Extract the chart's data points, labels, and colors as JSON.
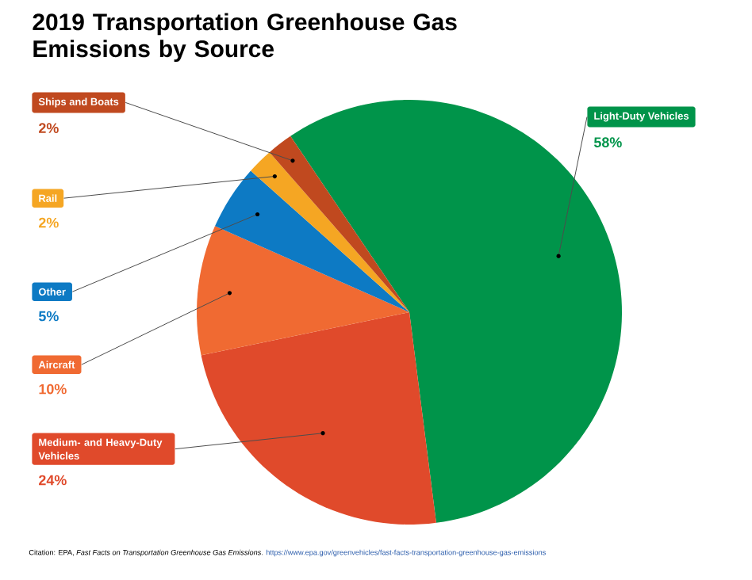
{
  "chart_data": {
    "type": "pie",
    "title": "2019 Transportation Greenhouse Gas Emissions by Source",
    "categories": [
      "Light-Duty Vehicles",
      "Medium- and Heavy-Duty Vehicles",
      "Aircraft",
      "Other",
      "Rail",
      "Ships and Boats"
    ],
    "values": [
      58,
      24,
      10,
      5,
      2,
      2
    ],
    "colors": [
      "#00944a",
      "#e04a2b",
      "#f06a32",
      "#0d7ac4",
      "#f5a623",
      "#c0491f"
    ],
    "value_labels": [
      "58%",
      "24%",
      "10%",
      "5%",
      "2%",
      "2%"
    ],
    "annotations": [
      "Citation: EPA, *Fast Facts on Transportation Greenhouse Gas Emissions*.",
      "https://www.epa.gov/greenvehicles/fast-facts-transportation-greenhouse-gas-emissions"
    ]
  }
}
